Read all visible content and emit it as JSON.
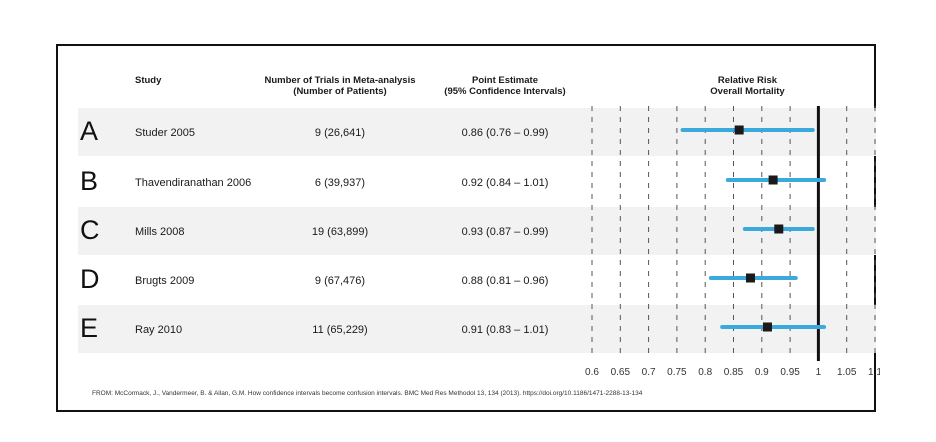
{
  "headers": {
    "study": "Study",
    "trials_line1": "Number of Trials in Meta-analysis",
    "trials_line2": "(Number of Patients)",
    "estimate_line1": "Point Estimate",
    "estimate_line2": "(95% Confidence Intervals)",
    "plot_line1": "Relative Risk",
    "plot_line2": "Overall Mortality"
  },
  "rows": [
    {
      "letter": "A",
      "study": "Studer 2005",
      "trials": "9 (26,641)",
      "estimate_text": "0.86 (0.76 – 0.99)"
    },
    {
      "letter": "B",
      "study": "Thavendiranathan 2006",
      "trials": "6 (39,937)",
      "estimate_text": "0.92 (0.84 – 1.01)"
    },
    {
      "letter": "C",
      "study": "Mills 2008",
      "trials": "19 (63,899)",
      "estimate_text": "0.93 (0.87 – 0.99)"
    },
    {
      "letter": "D",
      "study": "Brugts 2009",
      "trials": "9 (67,476)",
      "estimate_text": "0.88 (0.81 – 0.96)"
    },
    {
      "letter": "E",
      "study": "Ray 2010",
      "trials": "11 (65,229)",
      "estimate_text": "0.91 (0.83 – 1.01)"
    }
  ],
  "footer": "FROM: McCormack, J., Vandermeer, B. & Allan, G.M. How confidence intervals become confusion intervals. BMC Med Res Methodol 13, 134 (2013). https://doi.org/10.1186/1471-2288-13-134",
  "colors": {
    "ci_line": "#3aa9dc",
    "point": "#1a1a1a",
    "reference_line": "#111111",
    "grid": "#555555",
    "band": "#f2f2f2"
  },
  "chart_data": {
    "type": "forest",
    "x_ticks": [
      "0.6",
      "0.65",
      "0.7",
      "0.75",
      "0.8",
      "0.85",
      "0.9",
      "0.95",
      "1",
      "1.05",
      "1.1"
    ],
    "xlim": [
      0.6,
      1.1
    ],
    "reference_value": 1,
    "grid": "dashed vertical",
    "points": [
      {
        "label": "A",
        "estimate": 0.86,
        "lower": 0.76,
        "upper": 0.99
      },
      {
        "label": "B",
        "estimate": 0.92,
        "lower": 0.84,
        "upper": 1.01
      },
      {
        "label": "C",
        "estimate": 0.93,
        "lower": 0.87,
        "upper": 0.99
      },
      {
        "label": "D",
        "estimate": 0.88,
        "lower": 0.81,
        "upper": 0.96
      },
      {
        "label": "E",
        "estimate": 0.91,
        "lower": 0.83,
        "upper": 1.01
      }
    ]
  }
}
